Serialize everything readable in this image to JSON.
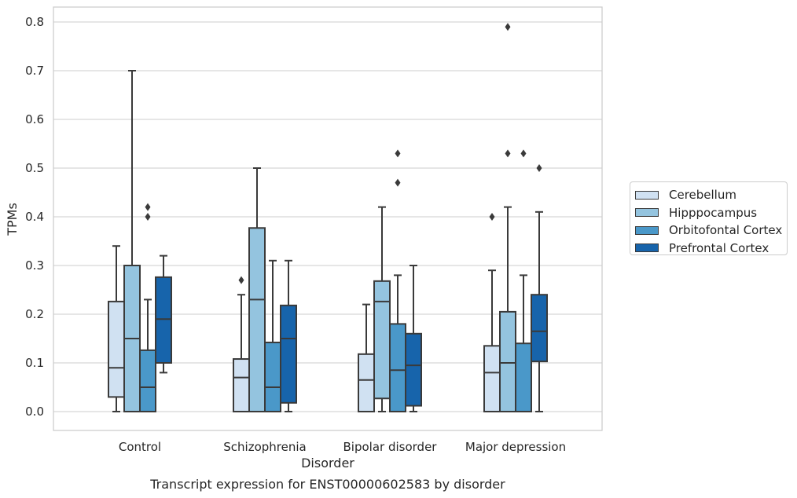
{
  "chart_data": {
    "type": "boxplot",
    "title": "Transcript expression for ENST00000602583 by disorder",
    "xlabel": "Disorder",
    "ylabel": "TPMs",
    "ylim": [
      -0.04,
      0.83
    ],
    "yticks": [
      "0.0",
      "0.1",
      "0.2",
      "0.3",
      "0.4",
      "0.5",
      "0.6",
      "0.7",
      "0.8"
    ],
    "ytick_values": [
      0.0,
      0.1,
      0.2,
      0.3,
      0.4,
      0.5,
      0.6,
      0.7,
      0.8
    ],
    "grid": true,
    "legend_position": "right",
    "categories": [
      "Control",
      "Schizophrenia",
      "Bipolar disorder",
      "Major depression"
    ],
    "series": [
      {
        "name": "Cerebellum",
        "color": "#d0e1f2",
        "boxes": [
          {
            "whislo": 0.0,
            "q1": 0.03,
            "med": 0.09,
            "q3": 0.226,
            "whishi": 0.34,
            "fliers": []
          },
          {
            "whislo": 0.0,
            "q1": 0.0,
            "med": 0.07,
            "q3": 0.108,
            "whishi": 0.24,
            "fliers": [
              0.27
            ]
          },
          {
            "whislo": 0.0,
            "q1": 0.0,
            "med": 0.065,
            "q3": 0.118,
            "whishi": 0.22,
            "fliers": []
          },
          {
            "whislo": 0.0,
            "q1": 0.0,
            "med": 0.08,
            "q3": 0.135,
            "whishi": 0.29,
            "fliers": [
              0.4
            ]
          }
        ]
      },
      {
        "name": "Hipppocampus",
        "color": "#94c4df",
        "boxes": [
          {
            "whislo": 0.0,
            "q1": 0.0,
            "med": 0.15,
            "q3": 0.3,
            "whishi": 0.7,
            "fliers": []
          },
          {
            "whislo": 0.0,
            "q1": 0.0,
            "med": 0.23,
            "q3": 0.377,
            "whishi": 0.5,
            "fliers": []
          },
          {
            "whislo": 0.0,
            "q1": 0.027,
            "med": 0.226,
            "q3": 0.268,
            "whishi": 0.42,
            "fliers": []
          },
          {
            "whislo": 0.0,
            "q1": 0.0,
            "med": 0.1,
            "q3": 0.205,
            "whishi": 0.42,
            "fliers": [
              0.53,
              0.79
            ]
          }
        ]
      },
      {
        "name": "Orbitofontal Cortex",
        "color": "#4a98c9",
        "boxes": [
          {
            "whislo": 0.0,
            "q1": 0.0,
            "med": 0.05,
            "q3": 0.126,
            "whishi": 0.23,
            "fliers": [
              0.4,
              0.42
            ]
          },
          {
            "whislo": 0.0,
            "q1": 0.0,
            "med": 0.05,
            "q3": 0.142,
            "whishi": 0.31,
            "fliers": []
          },
          {
            "whislo": 0.0,
            "q1": 0.0,
            "med": 0.085,
            "q3": 0.18,
            "whishi": 0.28,
            "fliers": [
              0.47,
              0.53
            ]
          },
          {
            "whislo": 0.0,
            "q1": 0.0,
            "med": 0.0,
            "q3": 0.14,
            "whishi": 0.28,
            "fliers": [
              0.53
            ]
          }
        ]
      },
      {
        "name": "Prefrontal Cortex",
        "color": "#1764ab",
        "boxes": [
          {
            "whislo": 0.08,
            "q1": 0.1,
            "med": 0.19,
            "q3": 0.276,
            "whishi": 0.32,
            "fliers": []
          },
          {
            "whislo": 0.0,
            "q1": 0.018,
            "med": 0.15,
            "q3": 0.218,
            "whishi": 0.31,
            "fliers": []
          },
          {
            "whislo": 0.0,
            "q1": 0.012,
            "med": 0.095,
            "q3": 0.16,
            "whishi": 0.3,
            "fliers": []
          },
          {
            "whislo": 0.0,
            "q1": 0.103,
            "med": 0.165,
            "q3": 0.24,
            "whishi": 0.41,
            "fliers": [
              0.5
            ]
          }
        ]
      }
    ]
  }
}
